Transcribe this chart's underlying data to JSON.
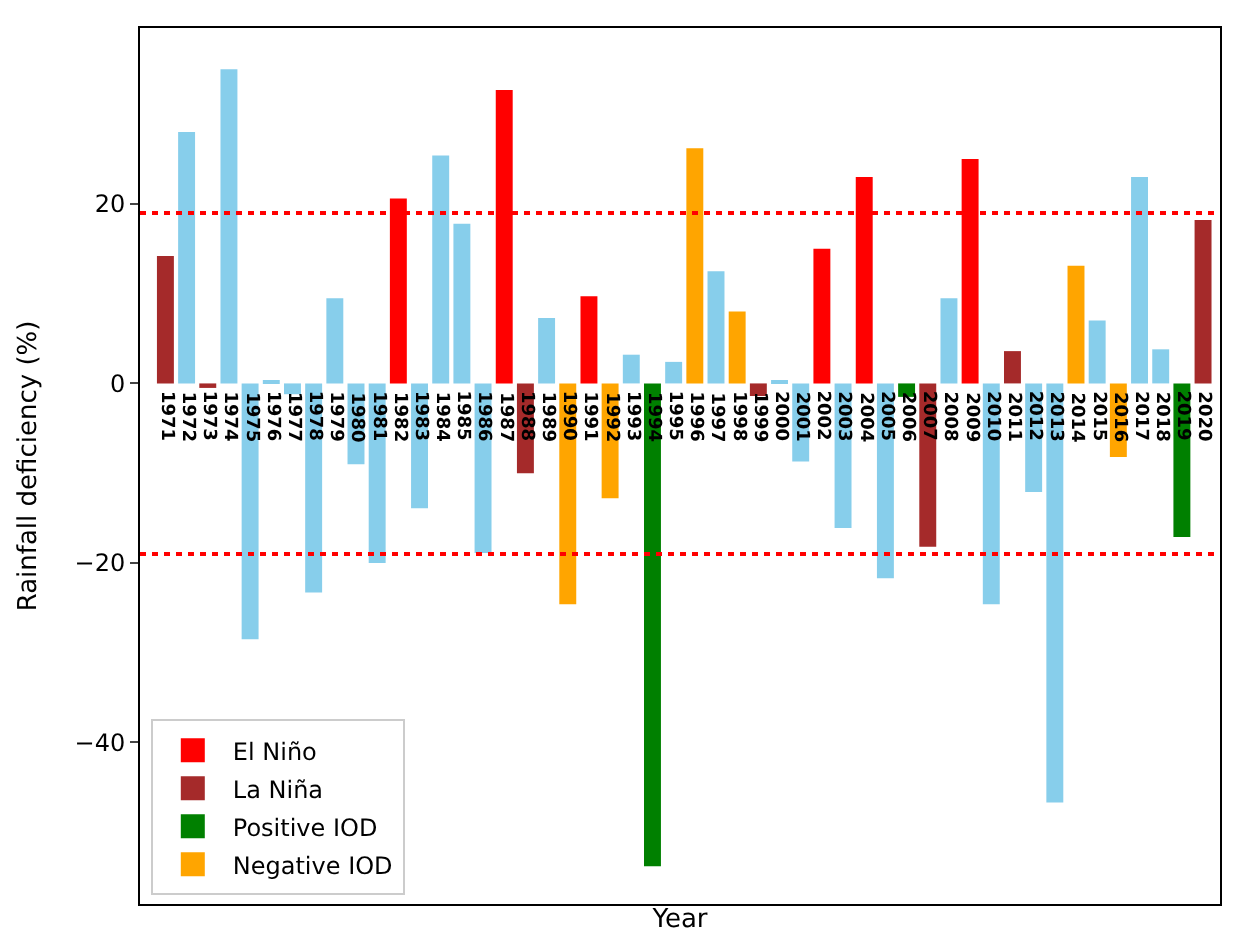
{
  "chart_data": {
    "type": "bar",
    "xlabel": "Year",
    "ylabel": "Rainfall deficiency (%)",
    "categories": [
      "1971",
      "1972",
      "1973",
      "1974",
      "1975",
      "1976",
      "1977",
      "1978",
      "1979",
      "1980",
      "1981",
      "1982",
      "1983",
      "1984",
      "1985",
      "1986",
      "1987",
      "1988",
      "1989",
      "1990",
      "1991",
      "1992",
      "1993",
      "1994",
      "1995",
      "1996",
      "1997",
      "1998",
      "1999",
      "2000",
      "2001",
      "2002",
      "2003",
      "2004",
      "2005",
      "2006",
      "2007",
      "2008",
      "2009",
      "2010",
      "2011",
      "2012",
      "2013",
      "2014",
      "2015",
      "2016",
      "2017",
      "2018",
      "2019",
      "2020"
    ],
    "series": [
      {
        "name": "El Niño",
        "color": "#ff0000",
        "values": [
          null,
          null,
          null,
          null,
          null,
          null,
          null,
          null,
          null,
          null,
          null,
          20.6,
          null,
          null,
          null,
          null,
          32.7,
          null,
          null,
          null,
          9.7,
          null,
          null,
          null,
          null,
          null,
          null,
          null,
          null,
          null,
          null,
          15.0,
          null,
          23.0,
          null,
          null,
          null,
          null,
          25.0,
          null,
          null,
          null,
          null,
          null,
          null,
          null,
          null,
          null,
          null,
          null
        ]
      },
      {
        "name": "La Niña",
        "color": "#a52a2a",
        "values": [
          14.2,
          null,
          -0.5,
          null,
          null,
          null,
          null,
          null,
          null,
          null,
          null,
          null,
          null,
          null,
          null,
          null,
          null,
          -10.0,
          null,
          null,
          null,
          null,
          null,
          null,
          null,
          null,
          null,
          null,
          -1.4,
          null,
          null,
          null,
          null,
          null,
          null,
          null,
          -18.2,
          null,
          null,
          null,
          3.6,
          null,
          null,
          null,
          null,
          null,
          null,
          null,
          null,
          18.2
        ]
      },
      {
        "name": "Positive IOD",
        "color": "#008000",
        "values": [
          null,
          null,
          null,
          null,
          null,
          null,
          null,
          null,
          null,
          null,
          null,
          null,
          null,
          null,
          null,
          null,
          null,
          null,
          null,
          null,
          null,
          null,
          null,
          -53.8,
          null,
          null,
          null,
          null,
          null,
          null,
          null,
          null,
          null,
          null,
          null,
          -1.5,
          null,
          null,
          null,
          null,
          null,
          null,
          null,
          null,
          null,
          null,
          null,
          null,
          -17.1,
          null
        ]
      },
      {
        "name": "Negative IOD",
        "color": "#ffa500",
        "values": [
          null,
          null,
          null,
          null,
          null,
          null,
          null,
          null,
          null,
          null,
          null,
          null,
          null,
          null,
          null,
          null,
          null,
          null,
          null,
          -24.6,
          null,
          -12.8,
          null,
          null,
          null,
          26.2,
          null,
          8.0,
          null,
          null,
          null,
          null,
          null,
          null,
          null,
          null,
          null,
          null,
          null,
          null,
          null,
          null,
          null,
          13.1,
          null,
          -8.2,
          null,
          null,
          null,
          null
        ]
      },
      {
        "color": "#87ceeb",
        "values": [
          null,
          28.0,
          null,
          35.0,
          -28.5,
          0.3,
          -1.2,
          -23.3,
          9.5,
          -9.0,
          -20.0,
          null,
          -13.9,
          25.4,
          17.8,
          -18.9,
          null,
          null,
          7.3,
          null,
          null,
          null,
          3.2,
          null,
          2.4,
          null,
          12.5,
          null,
          null,
          0.3,
          -8.7,
          null,
          -16.1,
          null,
          -21.7,
          null,
          null,
          9.5,
          null,
          -24.6,
          null,
          -12.1,
          -46.7,
          null,
          7.0,
          null,
          23.0,
          3.8,
          null,
          null
        ]
      }
    ],
    "ylim": [
      -58,
      39.6
    ],
    "yticks": [
      -40,
      -20,
      0,
      20
    ],
    "legend": "bottom left",
    "ref_lines": [
      {
        "axis": "y",
        "value": 19,
        "color": "#ff0000",
        "line_style": "dotted"
      },
      {
        "axis": "y",
        "value": -19,
        "color": "#ff0000",
        "line_style": "dotted"
      }
    ]
  }
}
